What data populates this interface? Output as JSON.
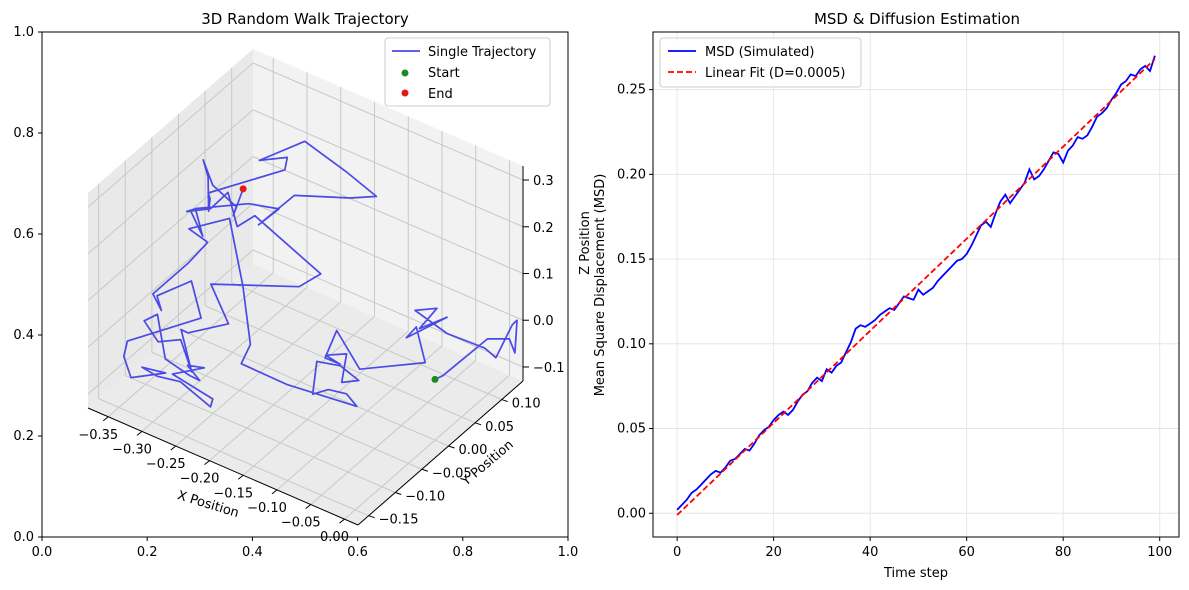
{
  "chart_data": [
    {
      "type": "line",
      "projection": "3d",
      "title": "3D Random Walk Trajectory",
      "xlabel": "X Position",
      "ylabel": "Y Position",
      "zlabel": "Z Position",
      "xlim": [
        -0.38,
        0.02
      ],
      "ylim": [
        -0.17,
        0.14
      ],
      "zlim": [
        -0.13,
        0.33
      ],
      "xticks": [
        "−0.35",
        "−0.30",
        "−0.25",
        "−0.20",
        "−0.15",
        "−0.10",
        "−0.05",
        "0.00"
      ],
      "yticks": [
        "−0.15",
        "−0.10",
        "−0.05",
        "0.00",
        "0.05",
        "0.10"
      ],
      "zticks": [
        "−0.1",
        "0.0",
        "0.1",
        "0.2",
        "0.3"
      ],
      "outer_axes_ticks": [
        "0.0",
        "0.2",
        "0.4",
        "0.6",
        "0.8",
        "1.0"
      ],
      "grid": true,
      "legend_position": "upper right",
      "legend": {
        "trajectory": "Single Trajectory",
        "start": "Start",
        "end": "End"
      },
      "colors": {
        "trajectory": "#4a4ae6",
        "start": "#1f8a1f",
        "end": "#e01a1a"
      },
      "trajectory": {
        "start": [
          0.0,
          0.0,
          0.0
        ],
        "end": [
          -0.3,
          0.02,
          0.2
        ],
        "n_steps": 100
      }
    },
    {
      "type": "line",
      "title": "MSD & Diffusion Estimation",
      "xlabel": "Time step",
      "ylabel": "Mean Square Displacement (MSD)",
      "xlim": [
        -5,
        104
      ],
      "ylim": [
        -0.014,
        0.284
      ],
      "xticks": [
        0,
        20,
        40,
        60,
        80,
        100
      ],
      "yticks": [
        0.0,
        0.05,
        0.1,
        0.15,
        0.2,
        0.25
      ],
      "grid": true,
      "legend_position": "upper left",
      "series": [
        {
          "name": "MSD (Simulated)",
          "color": "#0000ff",
          "style": "solid",
          "x": [
            0,
            1,
            2,
            3,
            4,
            5,
            6,
            7,
            8,
            9,
            10,
            11,
            12,
            13,
            14,
            15,
            16,
            17,
            18,
            19,
            20,
            21,
            22,
            23,
            24,
            25,
            26,
            27,
            28,
            29,
            30,
            31,
            32,
            33,
            34,
            35,
            36,
            37,
            38,
            39,
            40,
            41,
            42,
            43,
            44,
            45,
            46,
            47,
            48,
            49,
            50,
            51,
            52,
            53,
            54,
            55,
            56,
            57,
            58,
            59,
            60,
            61,
            62,
            63,
            64,
            65,
            66,
            67,
            68,
            69,
            70,
            71,
            72,
            73,
            74,
            75,
            76,
            77,
            78,
            79,
            80,
            81,
            82,
            83,
            84,
            85,
            86,
            87,
            88,
            89,
            90,
            91,
            92,
            93,
            94,
            95,
            96,
            97,
            98,
            99
          ],
          "y": [
            0.002,
            0.005,
            0.008,
            0.012,
            0.014,
            0.017,
            0.02,
            0.023,
            0.025,
            0.024,
            0.027,
            0.031,
            0.032,
            0.035,
            0.038,
            0.037,
            0.041,
            0.046,
            0.049,
            0.051,
            0.055,
            0.058,
            0.06,
            0.058,
            0.061,
            0.066,
            0.07,
            0.072,
            0.077,
            0.08,
            0.078,
            0.085,
            0.083,
            0.087,
            0.089,
            0.095,
            0.101,
            0.109,
            0.111,
            0.11,
            0.112,
            0.114,
            0.117,
            0.119,
            0.121,
            0.12,
            0.124,
            0.128,
            0.127,
            0.126,
            0.132,
            0.129,
            0.131,
            0.133,
            0.137,
            0.14,
            0.143,
            0.146,
            0.149,
            0.15,
            0.153,
            0.158,
            0.164,
            0.17,
            0.172,
            0.169,
            0.177,
            0.184,
            0.188,
            0.183,
            0.187,
            0.191,
            0.195,
            0.203,
            0.197,
            0.199,
            0.203,
            0.208,
            0.213,
            0.212,
            0.207,
            0.214,
            0.217,
            0.222,
            0.221,
            0.223,
            0.228,
            0.234,
            0.236,
            0.239,
            0.244,
            0.248,
            0.253,
            0.255,
            0.259,
            0.258,
            0.262,
            0.264,
            0.261,
            0.27
          ]
        },
        {
          "name": "Linear Fit (D=0.0005)",
          "color": "#ff0000",
          "style": "dashed",
          "x": [
            0,
            99
          ],
          "y": [
            -0.001,
            0.268
          ]
        }
      ]
    }
  ]
}
